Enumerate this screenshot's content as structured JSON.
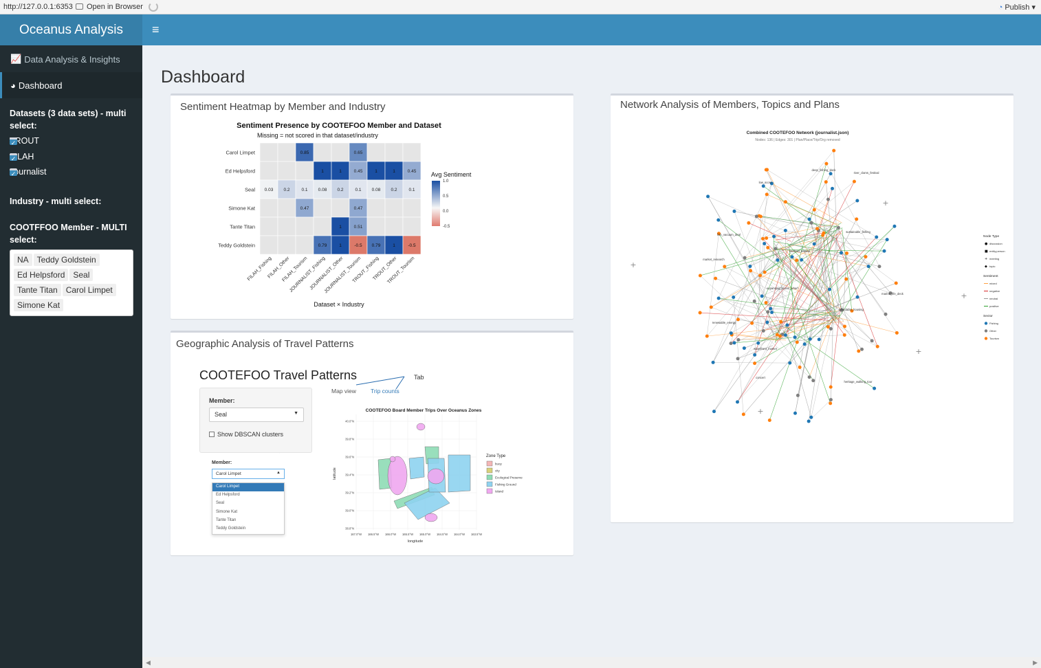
{
  "viewer": {
    "url": "http://127.0.0.1:6353",
    "open_in_browser": "Open in Browser",
    "publish": "Publish"
  },
  "header": {
    "app_title": "Oceanus Analysis",
    "toggle_icon": "hamburger-icon"
  },
  "sidebar": {
    "menu": [
      {
        "label": "Data Analysis & Insights",
        "icon": "bar-chart-icon"
      },
      {
        "label": "Dashboard",
        "icon": "dashboard-gauge-icon"
      }
    ],
    "datasets_label": "Datasets (3 data sets) - multi select:",
    "datasets": [
      "TROUT",
      "FILAH",
      "Journalist"
    ],
    "industry_label": "Industry - multi select:",
    "member_label": "COOTFFOO Member - MULTI select:",
    "members_selected": [
      "NA",
      "Teddy Goldstein",
      "Ed Helpsford",
      "Seal",
      "Tante Titan",
      "Carol Limpet",
      "Simone Kat"
    ]
  },
  "main": {
    "page_title": "Dashboard",
    "heatmap_box_title": "Sentiment Heatmap by Member and Industry",
    "geo_box_title": "Geographic Analysis of Travel Patterns",
    "network_box_title": "Network Analysis of Members, Topics and Plans"
  },
  "chart_data": [
    {
      "type": "heatmap",
      "title": "Sentiment Presence by COOTEFOO Member and Dataset",
      "subtitle": "Missing = not scored in that dataset/industry",
      "xlabel": "Dataset × Industry",
      "ylabel": "",
      "rows": [
        "Carol Limpet",
        "Ed Helpsford",
        "Seal",
        "Simone Kat",
        "Tante Titan",
        "Teddy Goldstein"
      ],
      "cols": [
        "FILAH_Fishing",
        "FILAH_Other",
        "FILAH_Tourism",
        "JOURNALIST_Fishing",
        "JOURNALIST_Other",
        "JOURNALIST_Tourism",
        "TROUT_Fishing",
        "TROUT_Other",
        "TROUT_Tourism"
      ],
      "values": [
        [
          null,
          null,
          0.85,
          null,
          null,
          0.65,
          null,
          null,
          null
        ],
        [
          null,
          null,
          null,
          1,
          1,
          0.45,
          1,
          1,
          0.45
        ],
        [
          0.03,
          0.2,
          0.1,
          0.08,
          0.2,
          0.1,
          0.08,
          0.2,
          0.1
        ],
        [
          null,
          null,
          0.47,
          null,
          null,
          0.47,
          null,
          null,
          null
        ],
        [
          null,
          null,
          null,
          null,
          1,
          0.51,
          null,
          null,
          null
        ],
        [
          null,
          null,
          null,
          0.79,
          1,
          -0.5,
          0.79,
          1,
          -0.5
        ]
      ],
      "labels": [
        [
          "",
          "",
          "0.85",
          "",
          "",
          "0.65",
          "",
          "",
          ""
        ],
        [
          "",
          "",
          "",
          "1",
          "1",
          "0.45",
          "1",
          "1",
          "0.45"
        ],
        [
          "0.03",
          "0.2",
          "0.1",
          "0.08",
          "0.2",
          "0.1",
          "0.08",
          "0.2",
          "0.1"
        ],
        [
          "",
          "",
          "0.47",
          "",
          "",
          "0.47",
          "",
          "",
          ""
        ],
        [
          "",
          "",
          "",
          "",
          "1",
          "0.51",
          "",
          "",
          ""
        ],
        [
          "",
          "",
          "",
          "0.79",
          "1",
          "-0.5",
          "0.79",
          "1",
          "-0.5"
        ]
      ],
      "legend_title": "Avg Sentiment",
      "legend_ticks": [
        "1.0",
        "0.5",
        "0.0",
        "-0.5"
      ],
      "colors": {
        "high": "#1a4fa3",
        "mid": "#f7f7f7",
        "low": "#d6604d",
        "missing": "#e5e5e5"
      }
    },
    {
      "type": "scatter",
      "title": "Combined COOTEFOO Network (journalist.json)",
      "subtitle": "Nodes: 136 | Edges: 301 | Plan/Place/Trip/Org removed",
      "node_labels": [
        "deep_fishing_dock",
        "low_score",
        "river_clams_festival",
        "fish_vacuum_deal",
        "seafood_festival",
        "sustainable_fishing",
        "market_research",
        "expanding_tourist_wharf",
        "marine_life_deck",
        "affordable_housing",
        "renewable_energy",
        "waterfront_market",
        "heritage_walking_tour",
        "concert"
      ],
      "legend": {
        "node_type_title": "Node Type",
        "node_types": [
          "discussion",
          "entity.person",
          "meeting",
          "topic"
        ],
        "sentiment_title": "Sentiment",
        "sentiments": [
          "mixed",
          "negative",
          "neutral",
          "positive"
        ],
        "sector_title": "Sector",
        "sectors": [
          "Fishing",
          "Other",
          "Tourism"
        ]
      },
      "colors": {
        "fishing": "#1f77b4",
        "other": "#7f7f7f",
        "tourism": "#ff7f0e",
        "positive": "#2ca02c",
        "negative": "#d62728",
        "neutral": "#999999",
        "mixed": "#ff9f40"
      }
    },
    {
      "type": "scatter",
      "title": "COOTEFOO Board Member Trips Over Oceanus Zones",
      "xlabel": "longitude",
      "ylabel": "latitude",
      "x_ticks": [
        "167.0°W",
        "166.5°W",
        "166.0°W",
        "165.5°W",
        "165.0°W",
        "164.5°W",
        "164.0°W",
        "163.5°W"
      ],
      "y_ticks": [
        "40.0°N",
        "39.8°N",
        "39.6°N",
        "39.4°N",
        "39.2°N",
        "39.0°N",
        "38.8°N"
      ],
      "legend_title": "Zone Type",
      "zone_types": [
        "buoy",
        "city",
        "Ecological Preserve",
        "Fishing Ground",
        "Island"
      ],
      "zone_colors": [
        "#f4b6b6",
        "#d9d27a",
        "#8fdcb5",
        "#8fd3f0",
        "#f0a8f0"
      ]
    }
  ],
  "travel": {
    "title": "COOTEFOO Travel Patterns",
    "member_label": "Member:",
    "member_value": "Seal",
    "dbscan_label": "Show DBSCAN clusters",
    "tab_note": "Tab",
    "tabs": [
      "Map view",
      "Trip counts"
    ],
    "open_member_label": "Member:",
    "open_member_value": "Carol Limpet",
    "options": [
      "Carol Limpet",
      "Ed Helpsford",
      "Seal",
      "Simone Kat",
      "Tante Titan",
      "Teddy Goldstein"
    ]
  }
}
